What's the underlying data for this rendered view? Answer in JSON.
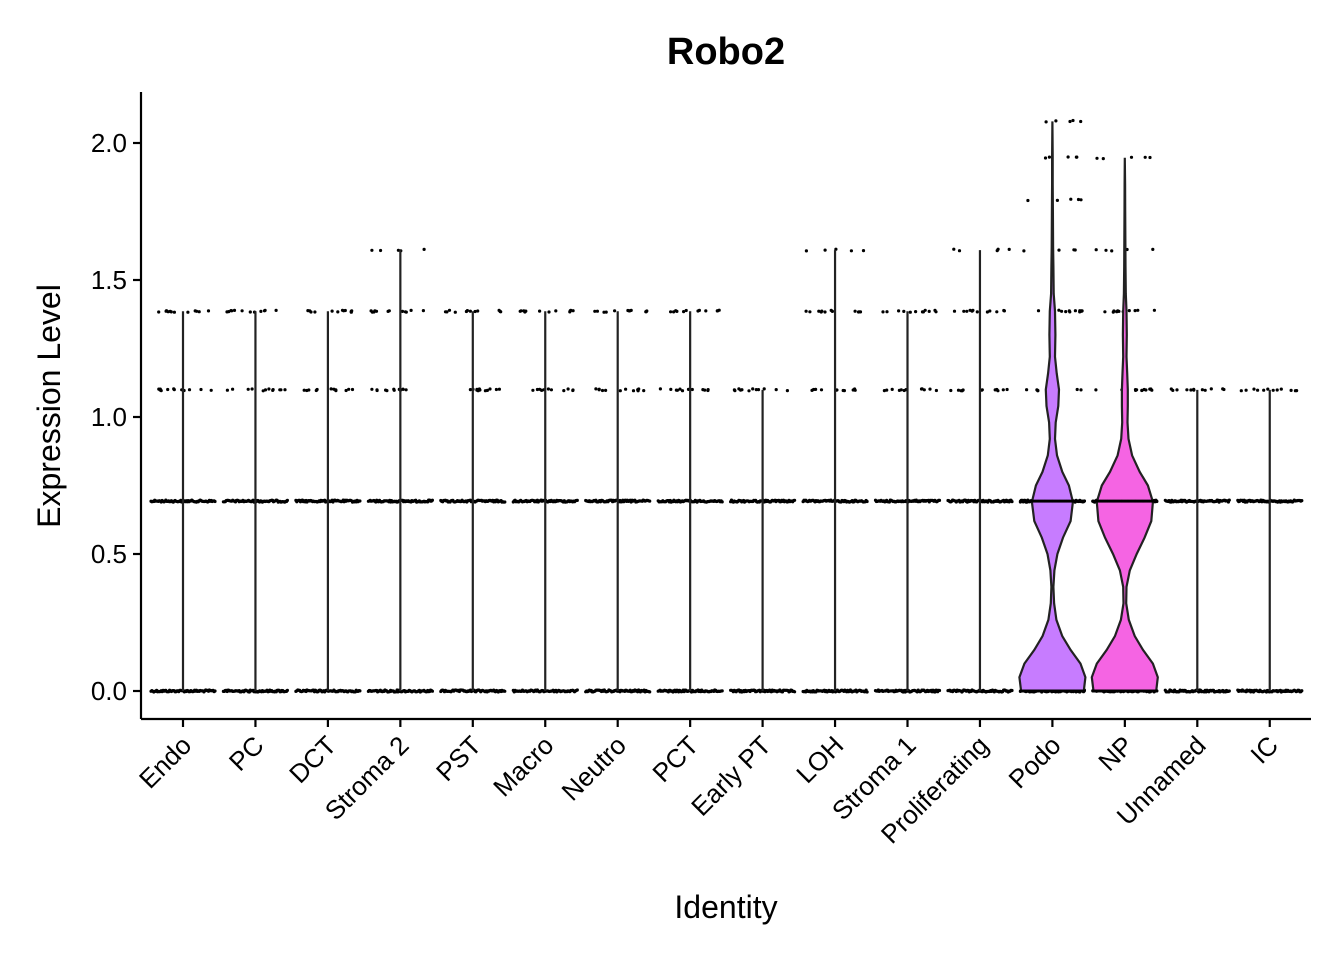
{
  "chart_data": {
    "type": "violin",
    "title": "Robo2",
    "xlabel": "Identity",
    "ylabel": "Expression Level",
    "ylim": [
      -0.1,
      2.2
    ],
    "yticks": [
      "0.0",
      "0.5",
      "1.0",
      "1.5",
      "2.0"
    ],
    "legend": "none",
    "grid": false,
    "series": [
      {
        "name": "Endo",
        "color": "#ffffff",
        "max": 1.386,
        "levels": [
          0,
          0.693,
          1.099,
          1.386
        ]
      },
      {
        "name": "PC",
        "color": "#ffffff",
        "max": 1.386,
        "levels": [
          0,
          0.693,
          1.099,
          1.386
        ]
      },
      {
        "name": "DCT",
        "color": "#ffffff",
        "max": 1.386,
        "levels": [
          0,
          0.693,
          1.099,
          1.386
        ]
      },
      {
        "name": "Stroma 2",
        "color": "#ffffff",
        "max": 1.609,
        "levels": [
          0,
          0.693,
          1.099,
          1.386,
          1.609
        ]
      },
      {
        "name": "PST",
        "color": "#ffffff",
        "max": 1.386,
        "levels": [
          0,
          0.693,
          1.099,
          1.386
        ]
      },
      {
        "name": "Macro",
        "color": "#ffffff",
        "max": 1.386,
        "levels": [
          0,
          0.693,
          1.099,
          1.386
        ]
      },
      {
        "name": "Neutro",
        "color": "#ffffff",
        "max": 1.386,
        "levels": [
          0,
          0.693,
          1.099,
          1.386
        ]
      },
      {
        "name": "PCT",
        "color": "#ffffff",
        "max": 1.386,
        "levels": [
          0,
          0.693,
          1.099,
          1.386
        ]
      },
      {
        "name": "Early PT",
        "color": "#ffffff",
        "max": 1.099,
        "levels": [
          0,
          0.693,
          1.099
        ]
      },
      {
        "name": "LOH",
        "color": "#ffffff",
        "max": 1.609,
        "levels": [
          0,
          0.693,
          1.099,
          1.386,
          1.609
        ]
      },
      {
        "name": "Stroma 1",
        "color": "#ffffff",
        "max": 1.386,
        "levels": [
          0,
          0.693,
          1.099,
          1.386
        ]
      },
      {
        "name": "Proliferating",
        "color": "#ffffff",
        "max": 1.609,
        "levels": [
          0,
          0.693,
          1.099,
          1.386,
          1.609
        ]
      },
      {
        "name": "Podo",
        "color": "#c77cff",
        "max": 2.079,
        "levels": [
          0,
          0.693,
          1.099,
          1.386,
          1.609,
          1.792,
          1.946,
          2.079
        ],
        "density": [
          [
            0,
            0.95
          ],
          [
            0.05,
            1.0
          ],
          [
            0.1,
            0.85
          ],
          [
            0.15,
            0.55
          ],
          [
            0.2,
            0.3
          ],
          [
            0.26,
            0.12
          ],
          [
            0.32,
            0.05
          ],
          [
            0.38,
            0.03
          ],
          [
            0.44,
            0.06
          ],
          [
            0.5,
            0.15
          ],
          [
            0.56,
            0.32
          ],
          [
            0.62,
            0.55
          ],
          [
            0.69,
            0.62
          ],
          [
            0.75,
            0.5
          ],
          [
            0.8,
            0.3
          ],
          [
            0.86,
            0.14
          ],
          [
            0.92,
            0.08
          ],
          [
            0.98,
            0.1
          ],
          [
            1.04,
            0.18
          ],
          [
            1.1,
            0.2
          ],
          [
            1.16,
            0.13
          ],
          [
            1.22,
            0.08
          ],
          [
            1.3,
            0.09
          ],
          [
            1.386,
            0.08
          ],
          [
            1.45,
            0.04
          ],
          [
            1.55,
            0.03
          ],
          [
            1.62,
            0.02
          ],
          [
            1.75,
            0.015
          ],
          [
            1.85,
            0.01
          ],
          [
            1.95,
            0.008
          ],
          [
            2.079,
            0.0
          ]
        ]
      },
      {
        "name": "NP",
        "color": "#f564e3",
        "max": 1.946,
        "levels": [
          0,
          0.693,
          1.099,
          1.386,
          1.609,
          1.946
        ],
        "density": [
          [
            0,
            0.95
          ],
          [
            0.05,
            1.0
          ],
          [
            0.1,
            0.85
          ],
          [
            0.15,
            0.55
          ],
          [
            0.2,
            0.3
          ],
          [
            0.26,
            0.12
          ],
          [
            0.32,
            0.04
          ],
          [
            0.38,
            0.05
          ],
          [
            0.44,
            0.15
          ],
          [
            0.5,
            0.36
          ],
          [
            0.56,
            0.6
          ],
          [
            0.62,
            0.8
          ],
          [
            0.69,
            0.85
          ],
          [
            0.75,
            0.7
          ],
          [
            0.8,
            0.45
          ],
          [
            0.86,
            0.22
          ],
          [
            0.92,
            0.11
          ],
          [
            0.98,
            0.08
          ],
          [
            1.04,
            0.09
          ],
          [
            1.1,
            0.09
          ],
          [
            1.16,
            0.07
          ],
          [
            1.22,
            0.05
          ],
          [
            1.3,
            0.06
          ],
          [
            1.386,
            0.05
          ],
          [
            1.45,
            0.03
          ],
          [
            1.55,
            0.02
          ],
          [
            1.62,
            0.018
          ],
          [
            1.75,
            0.012
          ],
          [
            1.85,
            0.008
          ],
          [
            1.946,
            0.0
          ]
        ]
      },
      {
        "name": "Unnamed",
        "color": "#ffffff",
        "max": 1.099,
        "levels": [
          0,
          0.693,
          1.099
        ]
      },
      {
        "name": "IC",
        "color": "#ffffff",
        "max": 1.099,
        "levels": [
          0,
          0.693,
          1.099
        ]
      }
    ]
  }
}
